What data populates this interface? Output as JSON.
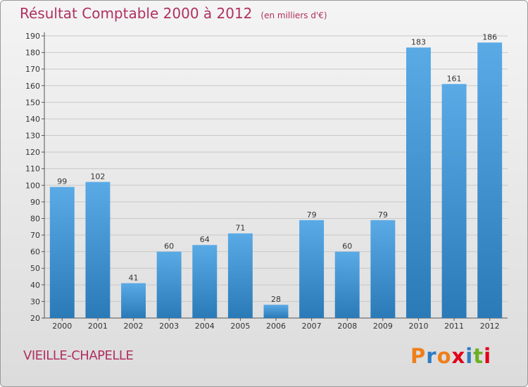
{
  "title": "Résultat Comptable 2000 à 2012",
  "subtitle": "(en milliers d'€)",
  "place_name": "VIEILLE-CHAPELLE",
  "logo_text": "Proxiti",
  "colors": {
    "title": "#b03060",
    "bar_top": "#5aaae6",
    "bar_bottom": "#2a7ab8",
    "logo": [
      "#ef7f1a",
      "#2e7bc4",
      "#ef7f1a",
      "#e2001a",
      "#2e7bc4",
      "#6ab023",
      "#e2001a"
    ]
  },
  "chart_data": {
    "type": "bar",
    "title": "Résultat Comptable 2000 à 2012",
    "subtitle": "(en milliers d'€)",
    "categories": [
      "2000",
      "2001",
      "2002",
      "2003",
      "2004",
      "2005",
      "2006",
      "2007",
      "2008",
      "2009",
      "2010",
      "2011",
      "2012"
    ],
    "values": [
      99,
      102,
      41,
      60,
      64,
      71,
      28,
      79,
      60,
      79,
      183,
      161,
      186
    ],
    "ylim": [
      20,
      190
    ],
    "yticks": [
      20,
      30,
      40,
      50,
      60,
      70,
      80,
      90,
      100,
      110,
      120,
      130,
      140,
      150,
      160,
      170,
      180,
      190
    ],
    "grid": true,
    "legend": "none"
  }
}
